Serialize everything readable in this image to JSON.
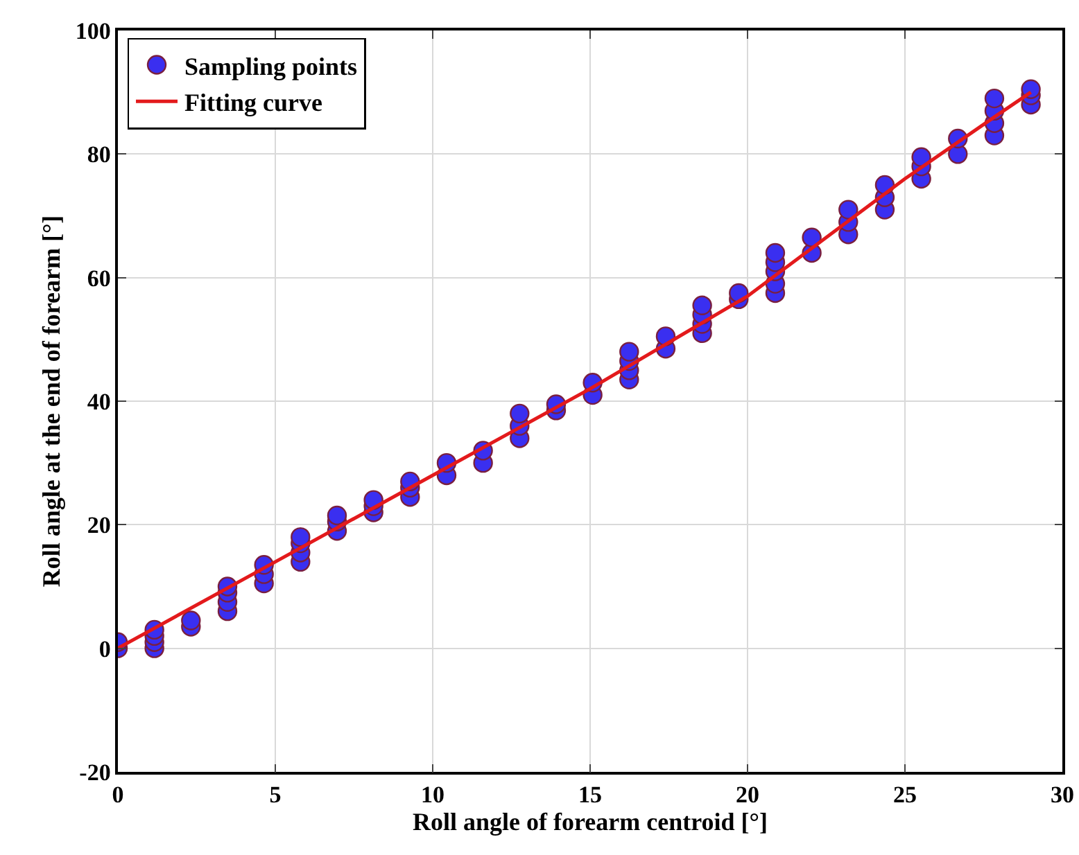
{
  "chart_data": {
    "type": "scatter",
    "xlabel": "Roll angle of forearm centroid [°]",
    "ylabel": "Roll angle at the end of forearm [°]",
    "xlim": [
      0,
      30
    ],
    "xticks": [
      0,
      5,
      10,
      15,
      20,
      25,
      30
    ],
    "ylim": [
      -20,
      100
    ],
    "yticks": [
      -20,
      0,
      20,
      40,
      60,
      80,
      100
    ],
    "grid": true,
    "legend": "top left",
    "series": [
      {
        "name": "Sampling points",
        "marker": "circle",
        "color": "#3a2ff0",
        "x": [
          0,
          0,
          1.16,
          1.16,
          1.16,
          1.16,
          2.32,
          2.32,
          3.48,
          3.48,
          3.48,
          3.48,
          4.64,
          4.64,
          4.64,
          5.8,
          5.8,
          5.8,
          5.8,
          6.96,
          6.96,
          6.96,
          8.12,
          8.12,
          8.12,
          9.28,
          9.28,
          9.28,
          10.44,
          10.44,
          11.6,
          11.6,
          12.76,
          12.76,
          12.76,
          13.92,
          13.92,
          15.08,
          15.08,
          16.24,
          16.24,
          16.24,
          16.24,
          17.4,
          17.4,
          18.56,
          18.56,
          18.56,
          18.56,
          19.72,
          19.72,
          20.88,
          20.88,
          20.88,
          20.88,
          20.88,
          22.04,
          22.04,
          23.2,
          23.2,
          23.2,
          24.36,
          24.36,
          24.36,
          25.52,
          25.52,
          25.52,
          26.68,
          26.68,
          27.84,
          27.84,
          27.84,
          27.84,
          29,
          29,
          29
        ],
        "values": [
          0,
          1,
          0,
          1,
          2,
          3,
          3.5,
          4.5,
          6,
          7.5,
          9,
          10,
          10.5,
          12,
          13.5,
          14,
          15.5,
          17,
          18,
          19,
          20.5,
          21.5,
          22,
          23,
          24,
          24.5,
          26,
          27,
          28,
          30,
          30,
          32,
          34,
          36,
          38,
          38.5,
          39.5,
          41,
          43,
          43.5,
          45,
          46.5,
          48,
          48.5,
          50.5,
          51,
          52.5,
          54,
          55.5,
          56.5,
          57.5,
          57.5,
          59,
          61,
          62.5,
          64,
          64,
          66.5,
          67,
          69,
          71,
          71,
          73,
          75,
          76,
          78,
          79.5,
          80,
          82.5,
          83,
          85,
          87,
          89,
          88,
          89.5,
          90.5
        ]
      },
      {
        "name": "Fitting curve",
        "type": "line",
        "marker": "none",
        "color": "#e31a1c",
        "x": [
          0,
          5,
          10,
          15,
          20,
          25,
          27.84,
          29
        ],
        "values": [
          0,
          14,
          28,
          42,
          57,
          76,
          86,
          90
        ]
      }
    ]
  }
}
